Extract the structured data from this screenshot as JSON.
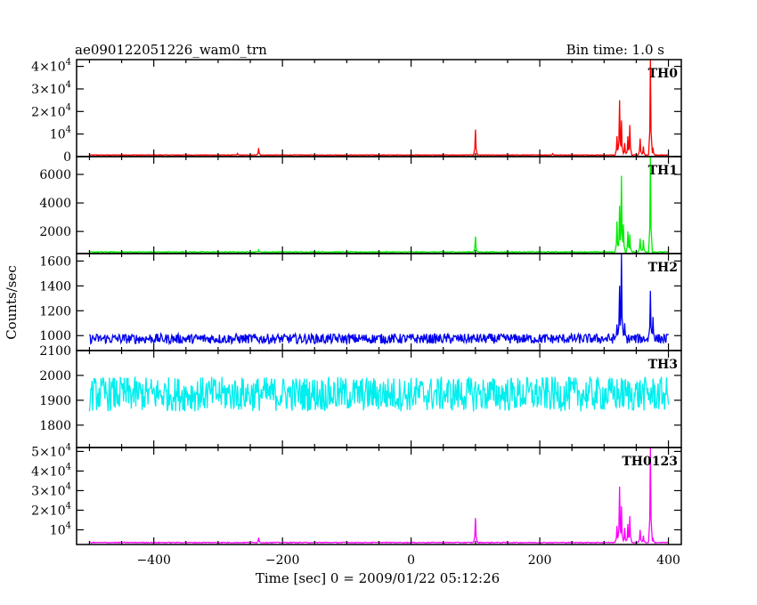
{
  "header": {
    "left_title": "ae090122051226_wam0_trn",
    "right_title": "Bin time: 1.0 s"
  },
  "chart_data": {
    "type": "line",
    "xlabel": "Time [sec] 0 = 2009/01/22 05:12:26",
    "ylabel": "Counts/sec",
    "xlim": [
      -520,
      420
    ],
    "xticks": [
      -400,
      -200,
      0,
      200,
      400
    ],
    "panels": [
      {
        "name": "TH0",
        "color": "#ff0000",
        "ylim": [
          0,
          43000
        ],
        "yticks": [
          0,
          10000,
          20000,
          30000,
          40000
        ],
        "ytick_labels": [
          {
            "base": "0",
            "exp": ""
          },
          {
            "base": "10",
            "exp": "4"
          },
          {
            "base": "2×10",
            "exp": "4"
          },
          {
            "base": "3×10",
            "exp": "4"
          },
          {
            "base": "4×10",
            "exp": "4"
          }
        ],
        "baseline": 700,
        "noise": 120,
        "peaks": [
          [
            -270,
            1400
          ],
          [
            -237,
            3800
          ],
          [
            100,
            12000
          ],
          [
            220,
            1300
          ],
          [
            320,
            9000
          ],
          [
            324,
            25000
          ],
          [
            327,
            16000
          ],
          [
            332,
            6000
          ],
          [
            337,
            9000
          ],
          [
            340,
            14000
          ],
          [
            356,
            8000
          ],
          [
            361,
            4500
          ],
          [
            372,
            43000
          ],
          [
            376,
            4000
          ]
        ]
      },
      {
        "name": "TH1",
        "color": "#00ee00",
        "ylim": [
          450,
          7250
        ],
        "yticks": [
          2000,
          4000,
          6000
        ],
        "ytick_labels": [
          {
            "base": "2000",
            "exp": ""
          },
          {
            "base": "4000",
            "exp": ""
          },
          {
            "base": "6000",
            "exp": ""
          }
        ],
        "baseline": 560,
        "noise": 35,
        "peaks": [
          [
            -237,
            700
          ],
          [
            100,
            1650
          ],
          [
            320,
            2700
          ],
          [
            324,
            3800
          ],
          [
            327,
            5900
          ],
          [
            330,
            2500
          ],
          [
            337,
            2000
          ],
          [
            340,
            1800
          ],
          [
            356,
            1500
          ],
          [
            361,
            1400
          ],
          [
            372,
            7250
          ]
        ]
      },
      {
        "name": "TH2",
        "color": "#0000ee",
        "ylim": [
          880,
          1660
        ],
        "yticks": [
          1000,
          1200,
          1400,
          1600
        ],
        "ytick_labels": [
          {
            "base": "1000",
            "exp": ""
          },
          {
            "base": "1200",
            "exp": ""
          },
          {
            "base": "1400",
            "exp": ""
          },
          {
            "base": "1600",
            "exp": ""
          }
        ],
        "baseline": 975,
        "noise": 40,
        "peaks": [
          [
            320,
            1090
          ],
          [
            324,
            1400
          ],
          [
            327,
            1660
          ],
          [
            332,
            1100
          ],
          [
            372,
            1360
          ],
          [
            376,
            1150
          ]
        ]
      },
      {
        "name": "TH3",
        "color": "#00eeee",
        "ylim": [
          1710,
          2100
        ],
        "yticks": [
          1800,
          1900,
          2000,
          2100
        ],
        "ytick_labels": [
          {
            "base": "1800",
            "exp": ""
          },
          {
            "base": "1900",
            "exp": ""
          },
          {
            "base": "2000",
            "exp": ""
          },
          {
            "base": "2100",
            "exp": ""
          }
        ],
        "baseline": 1925,
        "noise": 70,
        "peaks": []
      },
      {
        "name": "TH0123",
        "color": "#ff00ff",
        "ylim": [
          2500,
          52000
        ],
        "yticks": [
          10000,
          20000,
          30000,
          40000,
          50000
        ],
        "ytick_labels": [
          {
            "base": "10",
            "exp": "4"
          },
          {
            "base": "2×10",
            "exp": "4"
          },
          {
            "base": "3×10",
            "exp": "4"
          },
          {
            "base": "4×10",
            "exp": "4"
          },
          {
            "base": "5×10",
            "exp": "4"
          }
        ],
        "baseline": 3500,
        "noise": 200,
        "peaks": [
          [
            -237,
            6000
          ],
          [
            100,
            16000
          ],
          [
            320,
            12000
          ],
          [
            324,
            32000
          ],
          [
            327,
            22000
          ],
          [
            332,
            11000
          ],
          [
            337,
            13000
          ],
          [
            340,
            17000
          ],
          [
            356,
            10000
          ],
          [
            361,
            7000
          ],
          [
            372,
            52000
          ],
          [
            376,
            6000
          ]
        ]
      }
    ]
  }
}
